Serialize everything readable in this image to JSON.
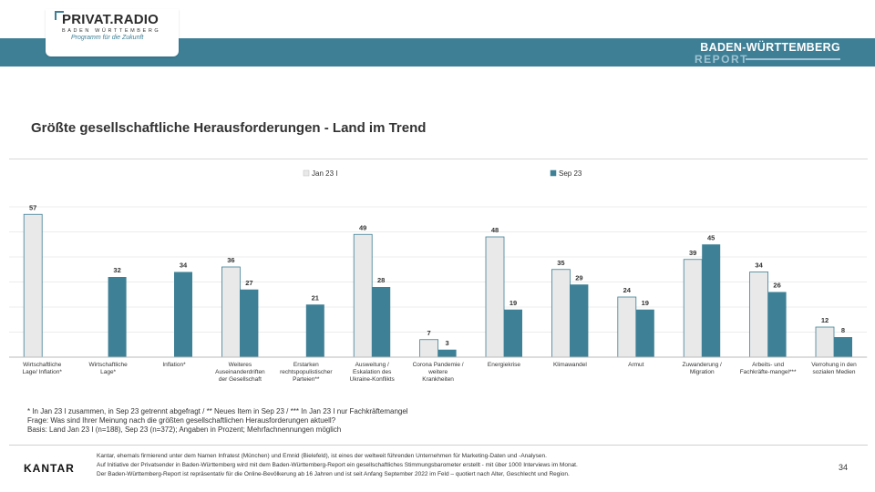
{
  "header": {
    "logo_name": "PRIVAT.RADIO",
    "logo_sub": "BADEN WÜRTTEMBERG",
    "logo_tagline": "Programm für die Zukunft",
    "report_title": "BADEN-WÜRTTEMBERG",
    "report_sub": "REPORT"
  },
  "chart_title": "Größte gesellschaftliche Herausforderungen - Land im Trend",
  "chart_data": {
    "type": "bar",
    "categories": [
      "Wirtschaftliche Lage/ Inflation*",
      "Wirtschaftliche Lage*",
      "Inflation*",
      "Weiteres Auseinanderdriften der Gesellschaft",
      "Erstarken rechtspopulistischer Parteien**",
      "Ausweitung / Eskalation des Ukraine-Konflikts",
      "Corona Pandemie / weitere Krankheiten",
      "Energiekrise",
      "Klimawandel",
      "Armut",
      "Zuwanderung / Migration",
      "Arbeits- und Fachkräfte-mangel***",
      "Verrohung in den sozialen Medien"
    ],
    "series": [
      {
        "name": "Jan 23 I",
        "values": [
          57,
          null,
          null,
          36,
          null,
          49,
          7,
          48,
          35,
          24,
          39,
          34,
          12
        ]
      },
      {
        "name": "Sep 23",
        "values": [
          null,
          32,
          34,
          27,
          21,
          28,
          3,
          19,
          29,
          19,
          45,
          26,
          8
        ]
      }
    ],
    "legend_position": "top",
    "colors": {
      "Jan 23 I": "#e9e9e9",
      "Sep 23": "#3e8096",
      "edge": "#3e7f96"
    }
  },
  "footnotes": [
    "* In Jan 23 I zusammen, in Sep 23 getrennt abgefragt / ** Neues Item in Sep 23 / *** In Jan 23 I nur Fachkräftemangel",
    "Frage: Was sind Ihrer Meinung nach die größten gesellschaftlichen Herausforderungen aktuell?",
    "Basis: Land Jan 23 I (n=188), Sep 23 (n=372); Angaben in Prozent; Mehrfachnennungen möglich"
  ],
  "footer": {
    "brand": "KANTAR",
    "disclaimer": [
      "Kantar, ehemals firmierend unter dem Namen Infratest (München) und Emnid (Bielefeld), ist eines der weltweit führenden Unternehmen für Marketing-Daten und -Analysen.",
      "Auf Initiative der Privatsender in Baden-Württemberg wird mit dem Baden-Württemberg-Report ein gesellschaftliches Stimmungsbarometer erstellt - mit über 1000 Interviews im Monat.",
      "Der Baden-Württemberg-Report ist repräsentativ für die Online-Bevölkerung ab 16 Jahren und ist seit Anfang September 2022 im Feld – quotiert nach Alter, Geschlecht und Region."
    ],
    "page_number": "34"
  }
}
